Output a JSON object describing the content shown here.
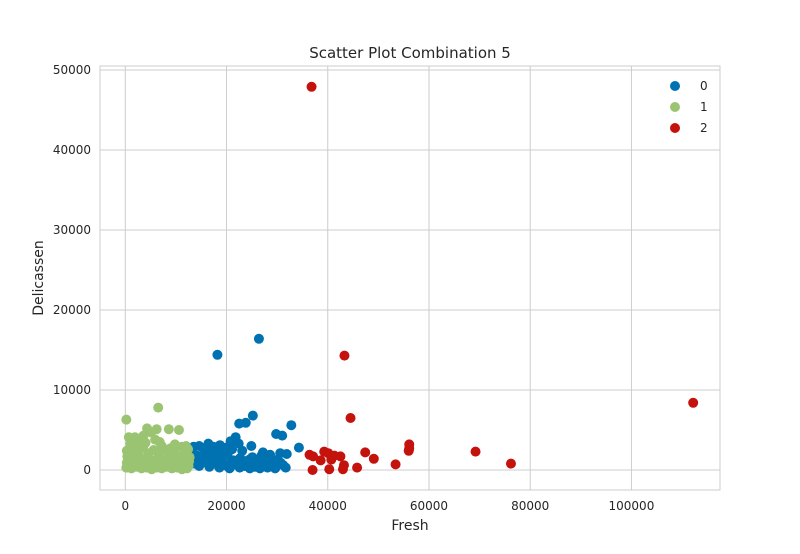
{
  "chart_data": {
    "type": "scatter",
    "title": "Scatter Plot Combination 5",
    "xlabel": "Fresh",
    "ylabel": "Delicassen",
    "xlim": [
      -5000,
      117500
    ],
    "ylim": [
      -2500,
      50500
    ],
    "xticks": [
      0,
      20000,
      40000,
      60000,
      80000,
      100000
    ],
    "yticks": [
      0,
      10000,
      20000,
      30000,
      40000,
      50000
    ],
    "grid": true,
    "legend_position": "top-right",
    "series": [
      {
        "name": "0",
        "color": "#0072B2",
        "points": [
          [
            18200,
            14400
          ],
          [
            26400,
            16400
          ],
          [
            25200,
            6800
          ],
          [
            22500,
            5800
          ],
          [
            23800,
            5900
          ],
          [
            32800,
            5600
          ],
          [
            29800,
            4500
          ],
          [
            31000,
            4300
          ],
          [
            21800,
            4100
          ],
          [
            20800,
            3600
          ],
          [
            22400,
            3300
          ],
          [
            24900,
            3000
          ],
          [
            34300,
            2800
          ],
          [
            13500,
            2900
          ],
          [
            14600,
            3000
          ],
          [
            15400,
            2700
          ],
          [
            16400,
            3300
          ],
          [
            17400,
            2900
          ],
          [
            18700,
            3100
          ],
          [
            19900,
            2800
          ],
          [
            21100,
            2600
          ],
          [
            27200,
            2200
          ],
          [
            28600,
            1900
          ],
          [
            30600,
            2100
          ],
          [
            31900,
            2000
          ],
          [
            13200,
            2100
          ],
          [
            14100,
            1800
          ],
          [
            15200,
            1600
          ],
          [
            16200,
            2000
          ],
          [
            17100,
            1500
          ],
          [
            18100,
            1700
          ],
          [
            19100,
            1400
          ],
          [
            20200,
            1900
          ],
          [
            21400,
            1200
          ],
          [
            22700,
            1500
          ],
          [
            23600,
            1100
          ],
          [
            24500,
            1300
          ],
          [
            25700,
            1000
          ],
          [
            26700,
            700
          ],
          [
            27600,
            1100
          ],
          [
            28700,
            600
          ],
          [
            29700,
            400
          ],
          [
            30700,
            900
          ],
          [
            31700,
            300
          ],
          [
            13600,
            800
          ],
          [
            14600,
            500
          ],
          [
            15600,
            1000
          ],
          [
            16600,
            400
          ],
          [
            17600,
            800
          ],
          [
            18600,
            300
          ],
          [
            19700,
            600
          ],
          [
            20600,
            200
          ],
          [
            21600,
            700
          ],
          [
            22600,
            300
          ],
          [
            23600,
            500
          ],
          [
            24600,
            200
          ],
          [
            25600,
            400
          ],
          [
            26600,
            200
          ],
          [
            28100,
            300
          ],
          [
            29600,
            200
          ],
          [
            31200,
            600
          ],
          [
            14000,
            1300
          ],
          [
            15900,
            1200
          ],
          [
            17800,
            2300
          ],
          [
            19400,
            1900
          ],
          [
            20900,
            900
          ],
          [
            23100,
            2400
          ],
          [
            25100,
            1600
          ],
          [
            26900,
            1800
          ],
          [
            28300,
            1200
          ],
          [
            30100,
            1300
          ],
          [
            16900,
            2500
          ],
          [
            18900,
            2200
          ],
          [
            21900,
            1000
          ],
          [
            24200,
            900
          ],
          [
            27900,
            500
          ]
        ]
      },
      {
        "name": "1",
        "color": "#9BC472",
        "points": [
          [
            6500,
            7800
          ],
          [
            200,
            6300
          ],
          [
            6200,
            5100
          ],
          [
            4300,
            5200
          ],
          [
            8600,
            5100
          ],
          [
            10600,
            5000
          ],
          [
            5100,
            4700
          ],
          [
            700,
            4100
          ],
          [
            1900,
            4100
          ],
          [
            3600,
            4300
          ],
          [
            5900,
            3800
          ],
          [
            6800,
            3500
          ],
          [
            9800,
            3200
          ],
          [
            11200,
            2900
          ],
          [
            12400,
            2600
          ],
          [
            300,
            2400
          ],
          [
            1400,
            2600
          ],
          [
            2500,
            2300
          ],
          [
            3500,
            2800
          ],
          [
            4500,
            2100
          ],
          [
            5600,
            2500
          ],
          [
            6600,
            2000
          ],
          [
            7700,
            2400
          ],
          [
            8600,
            1900
          ],
          [
            9700,
            2200
          ],
          [
            10700,
            1700
          ],
          [
            11700,
            2100
          ],
          [
            12700,
            1600
          ],
          [
            400,
            1700
          ],
          [
            1500,
            1500
          ],
          [
            2600,
            1800
          ],
          [
            3600,
            1300
          ],
          [
            4600,
            1600
          ],
          [
            5600,
            1200
          ],
          [
            6700,
            1500
          ],
          [
            7700,
            1100
          ],
          [
            8700,
            1400
          ],
          [
            9700,
            1000
          ],
          [
            10700,
            1300
          ],
          [
            11700,
            900
          ],
          [
            12600,
            1100
          ],
          [
            300,
            900
          ],
          [
            1400,
            700
          ],
          [
            2400,
            1000
          ],
          [
            3400,
            600
          ],
          [
            4400,
            900
          ],
          [
            5500,
            500
          ],
          [
            6500,
            800
          ],
          [
            7500,
            400
          ],
          [
            8500,
            700
          ],
          [
            9500,
            300
          ],
          [
            10500,
            600
          ],
          [
            11500,
            300
          ],
          [
            12500,
            500
          ],
          [
            200,
            300
          ],
          [
            1200,
            200
          ],
          [
            2200,
            400
          ],
          [
            3200,
            200
          ],
          [
            4200,
            300
          ],
          [
            5200,
            100
          ],
          [
            6200,
            300
          ],
          [
            7200,
            200
          ],
          [
            8200,
            400
          ],
          [
            9200,
            200
          ],
          [
            10200,
            300
          ],
          [
            11200,
            100
          ],
          [
            12200,
            200
          ],
          [
            2000,
            3100
          ],
          [
            4000,
            3400
          ],
          [
            7200,
            3000
          ],
          [
            8900,
            2700
          ],
          [
            1000,
            3300
          ],
          [
            3000,
            3700
          ],
          [
            12000,
            3000
          ]
        ]
      },
      {
        "name": "2",
        "color": "#C4120C",
        "points": [
          [
            36800,
            47900
          ],
          [
            112200,
            8400
          ],
          [
            43300,
            14300
          ],
          [
            44500,
            6500
          ],
          [
            56100,
            3200
          ],
          [
            56100,
            2700
          ],
          [
            56000,
            2400
          ],
          [
            69200,
            2300
          ],
          [
            76200,
            800
          ],
          [
            53400,
            700
          ],
          [
            47400,
            2200
          ],
          [
            49100,
            1400
          ],
          [
            45800,
            300
          ],
          [
            42500,
            1700
          ],
          [
            43200,
            600
          ],
          [
            43000,
            100
          ],
          [
            39300,
            2300
          ],
          [
            40100,
            2100
          ],
          [
            40700,
            1300
          ],
          [
            41300,
            1800
          ],
          [
            38600,
            1200
          ],
          [
            37100,
            1700
          ],
          [
            36400,
            1900
          ],
          [
            37000,
            0
          ],
          [
            40300,
            100
          ]
        ]
      }
    ]
  }
}
